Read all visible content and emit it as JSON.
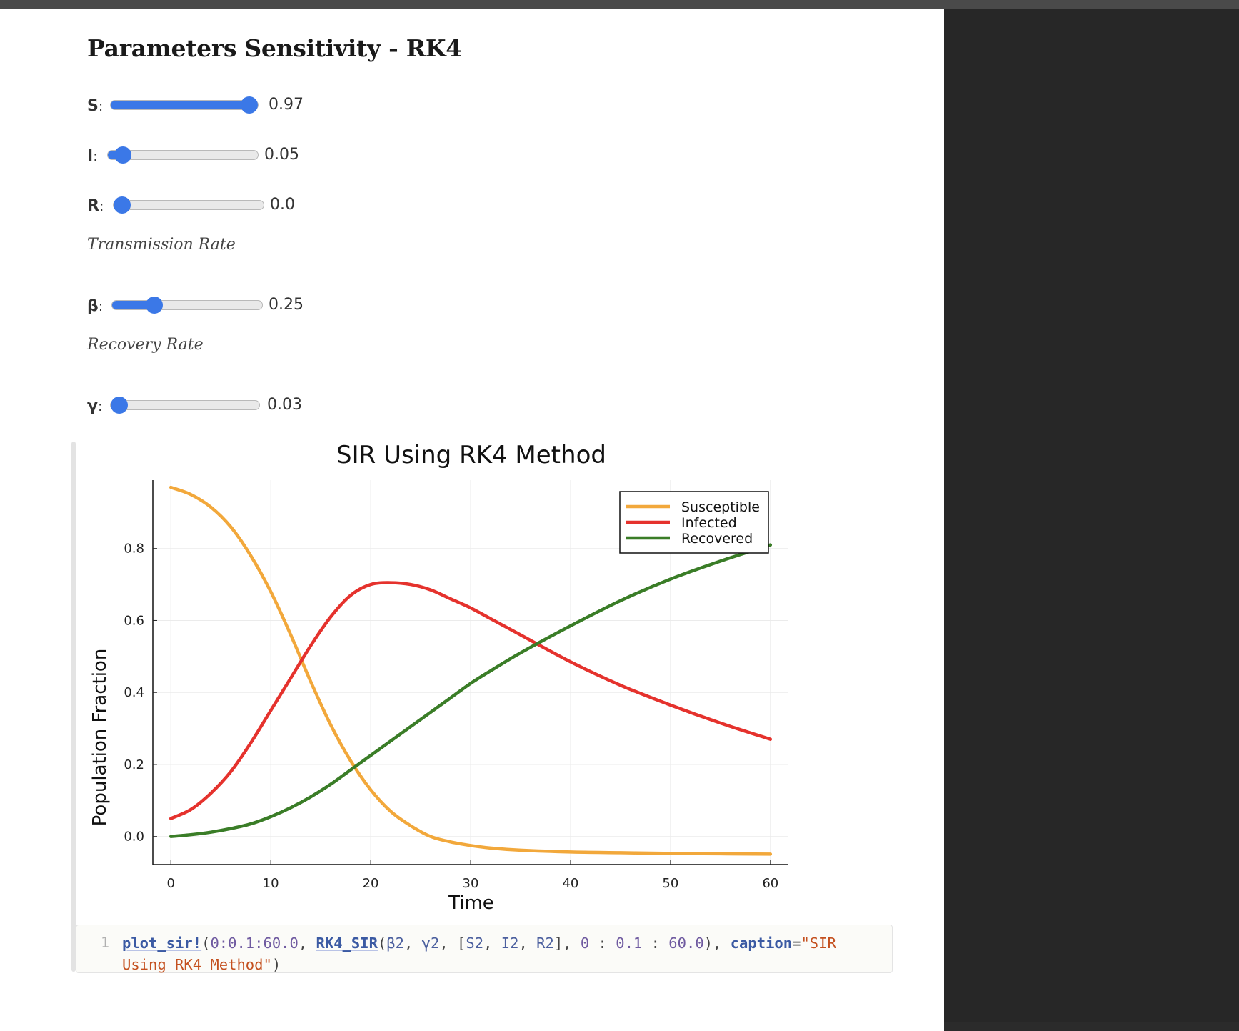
{
  "page": {
    "title": "Parameters Sensitivity - RK4",
    "colors": {
      "accent": "#3b78e7",
      "background": "#ffffff",
      "sidebar": "#272727"
    }
  },
  "sliders": [
    {
      "id": "s",
      "label": "S",
      "value": "0.97",
      "fraction": 1.0
    },
    {
      "id": "i",
      "label": "I",
      "value": "0.05",
      "fraction": 0.05
    },
    {
      "id": "r",
      "label": "R",
      "value": "0.0",
      "fraction": 0.0
    },
    {
      "id": "beta",
      "label": "β",
      "value": "0.25",
      "fraction": 0.25
    },
    {
      "id": "gamma",
      "label": "γ",
      "value": "0.03",
      "fraction": 0.0
    }
  ],
  "sections": {
    "transmission": "Transmission Rate",
    "recovery": "Recovery Rate"
  },
  "code": {
    "line_number": "1",
    "fn_name": "plot_sir!",
    "inner_fn": "RK4_SIR",
    "range1": "0:0.1:60.0",
    "args": [
      "β2",
      "γ2"
    ],
    "vec": [
      "S2",
      "I2",
      "R2"
    ],
    "range2": [
      "0",
      "0.1",
      "60.0"
    ],
    "kw": "caption",
    "caption_part1": "\"SIR",
    "caption_part2": "Using RK4 Method\""
  },
  "chart_data": {
    "type": "line",
    "title": "SIR Using RK4 Method",
    "xlabel": "Time",
    "ylabel": "Population Fraction",
    "xlim": [
      -1.8,
      61.8
    ],
    "ylim": [
      -0.078,
      0.99
    ],
    "xticks": [
      0,
      10,
      20,
      30,
      40,
      50,
      60
    ],
    "yticks": [
      0.0,
      0.2,
      0.4,
      0.6,
      0.8
    ],
    "ytick_labels": [
      "0.0",
      "0.2",
      "0.4",
      "0.6",
      "0.8"
    ],
    "grid": true,
    "legend_position": "top-right",
    "series": [
      {
        "name": "Susceptible",
        "color": "#f2a83b",
        "x": [
          0,
          2,
          4,
          6,
          8,
          10,
          12,
          14,
          16,
          18,
          20,
          22,
          24,
          26,
          28,
          30,
          32,
          35,
          40,
          45,
          50,
          55,
          60
        ],
        "y": [
          0.97,
          0.95,
          0.915,
          0.86,
          0.78,
          0.68,
          0.56,
          0.43,
          0.31,
          0.21,
          0.13,
          0.07,
          0.03,
          0.0,
          -0.015,
          -0.025,
          -0.032,
          -0.038,
          -0.043,
          -0.045,
          -0.047,
          -0.048,
          -0.049
        ]
      },
      {
        "name": "Infected",
        "color": "#e5322d",
        "x": [
          0,
          2,
          4,
          6,
          8,
          10,
          12,
          14,
          16,
          18,
          20,
          22,
          24,
          26,
          28,
          30,
          32,
          35,
          40,
          45,
          50,
          55,
          60
        ],
        "y": [
          0.05,
          0.075,
          0.12,
          0.18,
          0.26,
          0.35,
          0.44,
          0.53,
          0.61,
          0.67,
          0.7,
          0.705,
          0.7,
          0.685,
          0.66,
          0.635,
          0.605,
          0.56,
          0.485,
          0.42,
          0.365,
          0.315,
          0.27
        ]
      },
      {
        "name": "Recovered",
        "color": "#3a7d27",
        "x": [
          0,
          2,
          4,
          6,
          8,
          10,
          12,
          14,
          16,
          18,
          20,
          22,
          24,
          26,
          28,
          30,
          32,
          35,
          40,
          45,
          50,
          55,
          60
        ],
        "y": [
          0.0,
          0.005,
          0.012,
          0.022,
          0.035,
          0.055,
          0.08,
          0.11,
          0.145,
          0.185,
          0.225,
          0.265,
          0.305,
          0.345,
          0.385,
          0.425,
          0.46,
          0.51,
          0.585,
          0.655,
          0.715,
          0.765,
          0.81
        ]
      }
    ]
  }
}
